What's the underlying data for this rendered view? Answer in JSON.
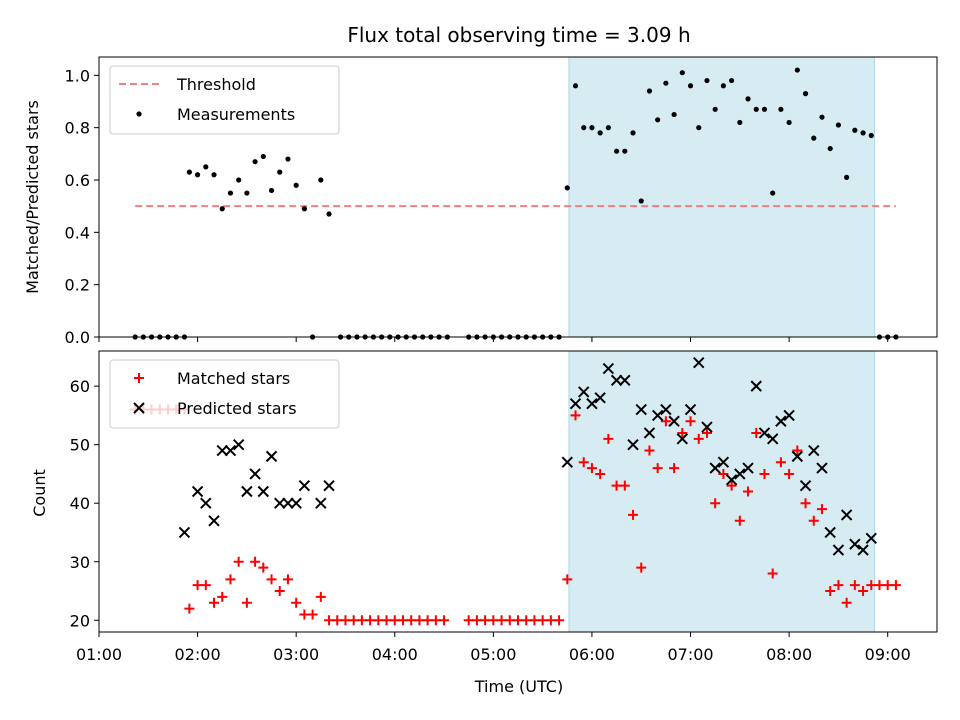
{
  "title": "Flux total observing time = 3.09 h",
  "colors": {
    "threshold": "#f08080",
    "measurements": "#000000",
    "matched": "#ff0000",
    "predicted": "#000000",
    "span": "#add8e6"
  },
  "chart_data": [
    {
      "type": "scatter",
      "ylabel": "Matched/Predicted stars",
      "xlim": [
        "01:00",
        "09:30"
      ],
      "ylim": [
        0,
        1.07
      ],
      "yticks": [
        "0.0",
        "0.2",
        "0.4",
        "0.6",
        "0.8",
        "1.0"
      ],
      "legend_position": "upper-left",
      "shaded_span": [
        "05:46",
        "08:52"
      ],
      "threshold": {
        "name": "Threshold",
        "y": 0.5,
        "x_range": [
          "01:22",
          "09:05"
        ]
      },
      "series": [
        {
          "name": "Measurements",
          "points": [
            [
              "01:22",
              0.0
            ],
            [
              "01:27",
              0.0
            ],
            [
              "01:32",
              0.0
            ],
            [
              "01:37",
              0.0
            ],
            [
              "01:42",
              0.0
            ],
            [
              "01:47",
              0.0
            ],
            [
              "01:52",
              0.0
            ],
            [
              "01:55",
              0.63
            ],
            [
              "02:00",
              0.62
            ],
            [
              "02:05",
              0.65
            ],
            [
              "02:10",
              0.62
            ],
            [
              "02:15",
              0.49
            ],
            [
              "02:20",
              0.55
            ],
            [
              "02:25",
              0.6
            ],
            [
              "02:30",
              0.55
            ],
            [
              "02:35",
              0.67
            ],
            [
              "02:40",
              0.69
            ],
            [
              "02:45",
              0.56
            ],
            [
              "02:50",
              0.63
            ],
            [
              "02:55",
              0.68
            ],
            [
              "03:00",
              0.58
            ],
            [
              "03:05",
              0.49
            ],
            [
              "03:10",
              0.0
            ],
            [
              "03:15",
              0.6
            ],
            [
              "03:20",
              0.47
            ],
            [
              "03:27",
              0.0
            ],
            [
              "03:32",
              0.0
            ],
            [
              "03:37",
              0.0
            ],
            [
              "03:42",
              0.0
            ],
            [
              "03:47",
              0.0
            ],
            [
              "03:52",
              0.0
            ],
            [
              "03:57",
              0.0
            ],
            [
              "04:02",
              0.0
            ],
            [
              "04:07",
              0.0
            ],
            [
              "04:12",
              0.0
            ],
            [
              "04:17",
              0.0
            ],
            [
              "04:22",
              0.0
            ],
            [
              "04:27",
              0.0
            ],
            [
              "04:32",
              0.0
            ],
            [
              "04:45",
              0.0
            ],
            [
              "04:50",
              0.0
            ],
            [
              "04:55",
              0.0
            ],
            [
              "05:00",
              0.0
            ],
            [
              "05:05",
              0.0
            ],
            [
              "05:10",
              0.0
            ],
            [
              "05:15",
              0.0
            ],
            [
              "05:20",
              0.0
            ],
            [
              "05:25",
              0.0
            ],
            [
              "05:30",
              0.0
            ],
            [
              "05:35",
              0.0
            ],
            [
              "05:40",
              0.0
            ],
            [
              "05:45",
              0.57
            ],
            [
              "05:50",
              0.96
            ],
            [
              "05:55",
              0.8
            ],
            [
              "06:00",
              0.8
            ],
            [
              "06:05",
              0.78
            ],
            [
              "06:10",
              0.8
            ],
            [
              "06:15",
              0.71
            ],
            [
              "06:20",
              0.71
            ],
            [
              "06:25",
              0.78
            ],
            [
              "06:30",
              0.52
            ],
            [
              "06:35",
              0.94
            ],
            [
              "06:40",
              0.83
            ],
            [
              "06:45",
              0.97
            ],
            [
              "06:50",
              0.85
            ],
            [
              "06:55",
              1.01
            ],
            [
              "07:00",
              0.96
            ],
            [
              "07:05",
              0.8
            ],
            [
              "07:10",
              0.98
            ],
            [
              "07:15",
              0.87
            ],
            [
              "07:20",
              0.96
            ],
            [
              "07:25",
              0.98
            ],
            [
              "07:30",
              0.82
            ],
            [
              "07:35",
              0.91
            ],
            [
              "07:40",
              0.87
            ],
            [
              "07:45",
              0.87
            ],
            [
              "07:50",
              0.55
            ],
            [
              "07:55",
              0.87
            ],
            [
              "08:00",
              0.82
            ],
            [
              "08:05",
              1.02
            ],
            [
              "08:10",
              0.93
            ],
            [
              "08:15",
              0.76
            ],
            [
              "08:20",
              0.84
            ],
            [
              "08:25",
              0.72
            ],
            [
              "08:30",
              0.81
            ],
            [
              "08:35",
              0.61
            ],
            [
              "08:40",
              0.79
            ],
            [
              "08:45",
              0.78
            ],
            [
              "08:50",
              0.77
            ],
            [
              "08:55",
              0.0
            ],
            [
              "09:00",
              0.0
            ],
            [
              "09:05",
              0.0
            ]
          ]
        }
      ]
    },
    {
      "type": "scatter",
      "xlabel": "Time (UTC)",
      "ylabel": "Count",
      "xlim": [
        "01:00",
        "09:30"
      ],
      "ylim": [
        18,
        66
      ],
      "yticks": [
        "20",
        "30",
        "40",
        "50",
        "60"
      ],
      "xticks": [
        "01:00",
        "02:00",
        "03:00",
        "04:00",
        "05:00",
        "06:00",
        "07:00",
        "08:00",
        "09:00"
      ],
      "legend_position": "upper-left",
      "shaded_span": [
        "05:46",
        "08:52"
      ],
      "series": [
        {
          "name": "Matched stars",
          "marker": "plus",
          "points": [
            [
              "01:22",
              56
            ],
            [
              "01:27",
              56
            ],
            [
              "01:32",
              56
            ],
            [
              "01:37",
              56
            ],
            [
              "01:42",
              56
            ],
            [
              "01:47",
              56
            ],
            [
              "01:52",
              56
            ],
            [
              "01:55",
              22
            ],
            [
              "02:00",
              26
            ],
            [
              "02:05",
              26
            ],
            [
              "02:10",
              23
            ],
            [
              "02:15",
              24
            ],
            [
              "02:20",
              27
            ],
            [
              "02:25",
              30
            ],
            [
              "02:30",
              23
            ],
            [
              "02:35",
              30
            ],
            [
              "02:40",
              29
            ],
            [
              "02:45",
              27
            ],
            [
              "02:50",
              25
            ],
            [
              "02:55",
              27
            ],
            [
              "03:00",
              23
            ],
            [
              "03:05",
              21
            ],
            [
              "03:10",
              21
            ],
            [
              "03:15",
              24
            ],
            [
              "03:20",
              20
            ],
            [
              "03:25",
              20
            ],
            [
              "03:30",
              20
            ],
            [
              "03:35",
              20
            ],
            [
              "03:40",
              20
            ],
            [
              "03:45",
              20
            ],
            [
              "03:50",
              20
            ],
            [
              "03:55",
              20
            ],
            [
              "04:00",
              20
            ],
            [
              "04:05",
              20
            ],
            [
              "04:10",
              20
            ],
            [
              "04:15",
              20
            ],
            [
              "04:20",
              20
            ],
            [
              "04:25",
              20
            ],
            [
              "04:30",
              20
            ],
            [
              "04:45",
              20
            ],
            [
              "04:50",
              20
            ],
            [
              "04:55",
              20
            ],
            [
              "05:00",
              20
            ],
            [
              "05:05",
              20
            ],
            [
              "05:10",
              20
            ],
            [
              "05:15",
              20
            ],
            [
              "05:20",
              20
            ],
            [
              "05:25",
              20
            ],
            [
              "05:30",
              20
            ],
            [
              "05:35",
              20
            ],
            [
              "05:40",
              20
            ],
            [
              "05:45",
              27
            ],
            [
              "05:50",
              55
            ],
            [
              "05:55",
              47
            ],
            [
              "06:00",
              46
            ],
            [
              "06:05",
              45
            ],
            [
              "06:10",
              51
            ],
            [
              "06:15",
              43
            ],
            [
              "06:20",
              43
            ],
            [
              "06:25",
              38
            ],
            [
              "06:30",
              29
            ],
            [
              "06:35",
              49
            ],
            [
              "06:40",
              46
            ],
            [
              "06:45",
              54
            ],
            [
              "06:50",
              46
            ],
            [
              "06:55",
              52
            ],
            [
              "07:00",
              54
            ],
            [
              "07:05",
              51
            ],
            [
              "07:10",
              52
            ],
            [
              "07:15",
              40
            ],
            [
              "07:20",
              45
            ],
            [
              "07:25",
              43
            ],
            [
              "07:30",
              37
            ],
            [
              "07:35",
              42
            ],
            [
              "07:40",
              52
            ],
            [
              "07:45",
              45
            ],
            [
              "07:50",
              28
            ],
            [
              "07:55",
              47
            ],
            [
              "08:00",
              45
            ],
            [
              "08:05",
              49
            ],
            [
              "08:10",
              40
            ],
            [
              "08:15",
              37
            ],
            [
              "08:20",
              39
            ],
            [
              "08:25",
              25
            ],
            [
              "08:30",
              26
            ],
            [
              "08:35",
              23
            ],
            [
              "08:40",
              26
            ],
            [
              "08:45",
              25
            ],
            [
              "08:50",
              26
            ],
            [
              "08:55",
              26
            ],
            [
              "09:00",
              26
            ],
            [
              "09:05",
              26
            ]
          ]
        },
        {
          "name": "Predicted stars",
          "marker": "x",
          "points": [
            [
              "01:52",
              35
            ],
            [
              "02:00",
              42
            ],
            [
              "02:05",
              40
            ],
            [
              "02:10",
              37
            ],
            [
              "02:15",
              49
            ],
            [
              "02:20",
              49
            ],
            [
              "02:25",
              50
            ],
            [
              "02:30",
              42
            ],
            [
              "02:35",
              45
            ],
            [
              "02:40",
              42
            ],
            [
              "02:45",
              48
            ],
            [
              "02:50",
              40
            ],
            [
              "02:55",
              40
            ],
            [
              "03:00",
              40
            ],
            [
              "03:05",
              43
            ],
            [
              "03:15",
              40
            ],
            [
              "03:20",
              43
            ],
            [
              "05:45",
              47
            ],
            [
              "05:50",
              57
            ],
            [
              "05:55",
              59
            ],
            [
              "06:00",
              57
            ],
            [
              "06:05",
              58
            ],
            [
              "06:10",
              63
            ],
            [
              "06:15",
              61
            ],
            [
              "06:20",
              61
            ],
            [
              "06:25",
              50
            ],
            [
              "06:30",
              56
            ],
            [
              "06:35",
              52
            ],
            [
              "06:40",
              55
            ],
            [
              "06:45",
              56
            ],
            [
              "06:50",
              54
            ],
            [
              "06:55",
              51
            ],
            [
              "07:00",
              56
            ],
            [
              "07:05",
              64
            ],
            [
              "07:10",
              53
            ],
            [
              "07:15",
              46
            ],
            [
              "07:20",
              47
            ],
            [
              "07:25",
              44
            ],
            [
              "07:30",
              45
            ],
            [
              "07:35",
              46
            ],
            [
              "07:40",
              60
            ],
            [
              "07:45",
              52
            ],
            [
              "07:50",
              51
            ],
            [
              "07:55",
              54
            ],
            [
              "08:00",
              55
            ],
            [
              "08:05",
              48
            ],
            [
              "08:10",
              43
            ],
            [
              "08:15",
              49
            ],
            [
              "08:20",
              46
            ],
            [
              "08:25",
              35
            ],
            [
              "08:30",
              32
            ],
            [
              "08:35",
              38
            ],
            [
              "08:40",
              33
            ],
            [
              "08:45",
              32
            ],
            [
              "08:50",
              34
            ]
          ]
        }
      ]
    }
  ]
}
